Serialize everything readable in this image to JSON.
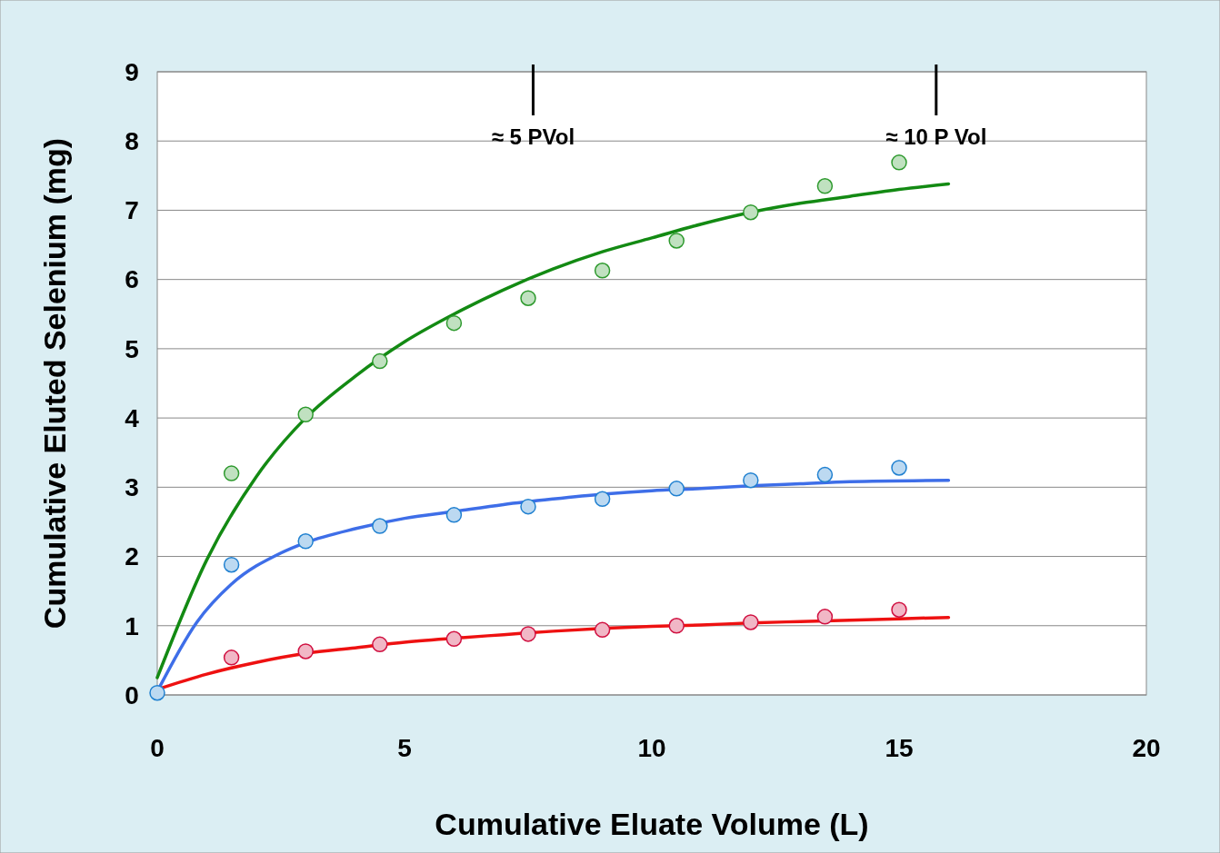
{
  "chart_data": {
    "type": "scatter",
    "xlabel": "Cumulative Eluate Volume (L)",
    "ylabel": "Cumulative Eluted Selenium (mg)",
    "xlim": [
      0,
      20
    ],
    "xticks": [
      0,
      5,
      10,
      15,
      20
    ],
    "ylim": [
      0,
      9
    ],
    "yticks": [
      0,
      1,
      2,
      3,
      4,
      5,
      6,
      7,
      8,
      9
    ],
    "grid": "y",
    "marker": "circle",
    "line_style": "solid",
    "annotations": [
      "≈ 5 PVol",
      "≈ 10 P Vol"
    ],
    "series": [
      {
        "type": "line",
        "marker": "none",
        "color": "#138a13",
        "x": [
          0,
          1,
          2,
          3,
          4,
          5,
          6,
          7,
          8,
          9,
          10,
          11,
          12,
          13,
          14,
          15,
          16
        ],
        "values": [
          0.25,
          1.95,
          3.15,
          4.0,
          4.6,
          5.1,
          5.5,
          5.85,
          6.15,
          6.4,
          6.6,
          6.8,
          6.97,
          7.1,
          7.2,
          7.3,
          7.38
        ]
      },
      {
        "type": "line",
        "marker": "none",
        "color": "#3e6ee8",
        "x": [
          0,
          0.8,
          1.5,
          2.5,
          3,
          4,
          5,
          6,
          7,
          8,
          9,
          10,
          11,
          12,
          13,
          14,
          16
        ],
        "values": [
          0.05,
          1.05,
          1.6,
          2.05,
          2.2,
          2.4,
          2.55,
          2.65,
          2.75,
          2.83,
          2.9,
          2.95,
          2.98,
          3.02,
          3.05,
          3.08,
          3.1
        ]
      },
      {
        "type": "line",
        "marker": "none",
        "color": "#ee1111",
        "x": [
          0,
          1,
          2,
          3,
          4,
          5,
          6,
          7,
          8,
          9,
          10,
          11,
          12,
          13,
          14,
          16
        ],
        "values": [
          0.08,
          0.3,
          0.47,
          0.6,
          0.68,
          0.76,
          0.82,
          0.87,
          0.92,
          0.96,
          0.99,
          1.01,
          1.04,
          1.06,
          1.08,
          1.12
        ]
      },
      {
        "color": "#2e9a2e",
        "x": [
          1.5,
          3,
          4.5,
          6,
          7.5,
          9,
          10.5,
          12,
          13.5,
          15
        ],
        "values": [
          3.2,
          4.05,
          4.82,
          5.37,
          5.73,
          6.13,
          6.56,
          6.97,
          7.35,
          7.69
        ]
      },
      {
        "color": "#2080d0",
        "x": [
          0,
          1.5,
          3,
          4.5,
          6,
          7.5,
          9,
          10.5,
          12,
          13.5,
          15
        ],
        "values": [
          0.03,
          1.88,
          2.22,
          2.44,
          2.6,
          2.72,
          2.83,
          2.98,
          3.1,
          3.18,
          3.28
        ]
      },
      {
        "color": "#d01040",
        "x": [
          1.5,
          3,
          4.5,
          6,
          7.5,
          9,
          10.5,
          12,
          13.5,
          15
        ],
        "values": [
          0.54,
          0.63,
          0.73,
          0.81,
          0.88,
          0.94,
          1.0,
          1.05,
          1.13,
          1.23
        ]
      }
    ]
  }
}
